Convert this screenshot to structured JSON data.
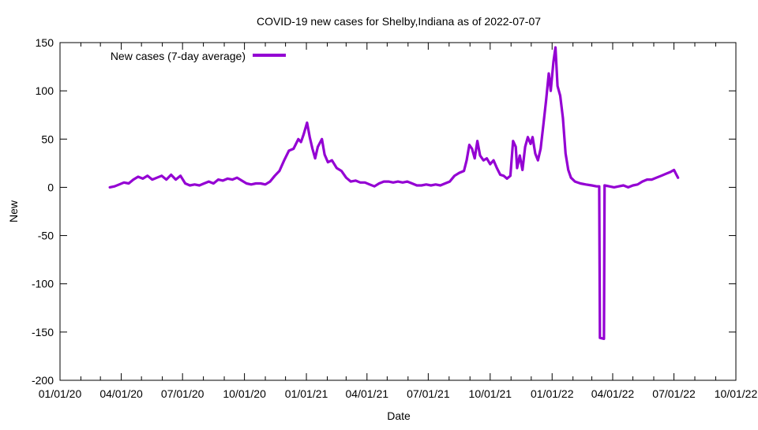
{
  "chart_data": {
    "type": "line",
    "title": "COVID-19 new cases for Shelby,Indiana as of 2022-07-07",
    "xlabel": "Date",
    "ylabel": "New",
    "ylim": [
      -200,
      150
    ],
    "xlim": [
      "2020-01-01",
      "2022-10-01"
    ],
    "yticks": [
      -200,
      -150,
      -100,
      -50,
      0,
      50,
      100,
      150
    ],
    "xticks": [
      {
        "date": "2020-01-01",
        "label": "01/01/20"
      },
      {
        "date": "2020-04-01",
        "label": "04/01/20"
      },
      {
        "date": "2020-07-01",
        "label": "07/01/20"
      },
      {
        "date": "2020-10-01",
        "label": "10/01/20"
      },
      {
        "date": "2021-01-01",
        "label": "01/01/21"
      },
      {
        "date": "2021-04-01",
        "label": "04/01/21"
      },
      {
        "date": "2021-07-01",
        "label": "07/01/21"
      },
      {
        "date": "2021-10-01",
        "label": "10/01/21"
      },
      {
        "date": "2022-01-01",
        "label": "01/01/22"
      },
      {
        "date": "2022-04-01",
        "label": "04/01/22"
      },
      {
        "date": "2022-07-01",
        "label": "07/01/22"
      },
      {
        "date": "2022-10-01",
        "label": "10/01/22"
      }
    ],
    "legend": "top-left",
    "grid": false,
    "series": [
      {
        "name": "New cases (7-day average)",
        "color": "#9400d3",
        "points": [
          [
            "2020-03-15",
            0
          ],
          [
            "2020-03-22",
            1
          ],
          [
            "2020-03-29",
            3
          ],
          [
            "2020-04-05",
            5
          ],
          [
            "2020-04-12",
            4
          ],
          [
            "2020-04-19",
            8
          ],
          [
            "2020-04-26",
            11
          ],
          [
            "2020-05-03",
            9
          ],
          [
            "2020-05-10",
            12
          ],
          [
            "2020-05-17",
            8
          ],
          [
            "2020-05-24",
            10
          ],
          [
            "2020-05-31",
            12
          ],
          [
            "2020-06-07",
            8
          ],
          [
            "2020-06-14",
            13
          ],
          [
            "2020-06-21",
            8
          ],
          [
            "2020-06-28",
            12
          ],
          [
            "2020-07-05",
            4
          ],
          [
            "2020-07-12",
            2
          ],
          [
            "2020-07-19",
            3
          ],
          [
            "2020-07-26",
            2
          ],
          [
            "2020-08-02",
            4
          ],
          [
            "2020-08-09",
            6
          ],
          [
            "2020-08-16",
            4
          ],
          [
            "2020-08-23",
            8
          ],
          [
            "2020-08-30",
            7
          ],
          [
            "2020-09-06",
            9
          ],
          [
            "2020-09-13",
            8
          ],
          [
            "2020-09-20",
            10
          ],
          [
            "2020-09-27",
            7
          ],
          [
            "2020-10-04",
            4
          ],
          [
            "2020-10-11",
            3
          ],
          [
            "2020-10-18",
            4
          ],
          [
            "2020-10-25",
            4
          ],
          [
            "2020-11-01",
            3
          ],
          [
            "2020-11-08",
            6
          ],
          [
            "2020-11-15",
            12
          ],
          [
            "2020-11-22",
            17
          ],
          [
            "2020-11-29",
            28
          ],
          [
            "2020-12-06",
            38
          ],
          [
            "2020-12-13",
            40
          ],
          [
            "2020-12-20",
            50
          ],
          [
            "2020-12-24",
            47
          ],
          [
            "2020-12-28",
            55
          ],
          [
            "2021-01-02",
            67
          ],
          [
            "2021-01-06",
            52
          ],
          [
            "2021-01-10",
            40
          ],
          [
            "2021-01-14",
            30
          ],
          [
            "2021-01-18",
            42
          ],
          [
            "2021-01-24",
            50
          ],
          [
            "2021-01-28",
            34
          ],
          [
            "2021-02-02",
            26
          ],
          [
            "2021-02-08",
            28
          ],
          [
            "2021-02-15",
            20
          ],
          [
            "2021-02-22",
            17
          ],
          [
            "2021-03-01",
            10
          ],
          [
            "2021-03-08",
            6
          ],
          [
            "2021-03-15",
            7
          ],
          [
            "2021-03-22",
            5
          ],
          [
            "2021-03-29",
            5
          ],
          [
            "2021-04-05",
            3
          ],
          [
            "2021-04-12",
            1
          ],
          [
            "2021-04-19",
            4
          ],
          [
            "2021-04-26",
            6
          ],
          [
            "2021-05-03",
            6
          ],
          [
            "2021-05-10",
            5
          ],
          [
            "2021-05-17",
            6
          ],
          [
            "2021-05-24",
            5
          ],
          [
            "2021-05-31",
            6
          ],
          [
            "2021-06-07",
            4
          ],
          [
            "2021-06-14",
            2
          ],
          [
            "2021-06-21",
            2
          ],
          [
            "2021-06-28",
            3
          ],
          [
            "2021-07-05",
            2
          ],
          [
            "2021-07-12",
            3
          ],
          [
            "2021-07-19",
            2
          ],
          [
            "2021-07-26",
            4
          ],
          [
            "2021-08-02",
            6
          ],
          [
            "2021-08-09",
            12
          ],
          [
            "2021-08-16",
            15
          ],
          [
            "2021-08-23",
            17
          ],
          [
            "2021-08-27",
            28
          ],
          [
            "2021-08-31",
            44
          ],
          [
            "2021-09-04",
            40
          ],
          [
            "2021-09-08",
            30
          ],
          [
            "2021-09-12",
            48
          ],
          [
            "2021-09-16",
            33
          ],
          [
            "2021-09-21",
            28
          ],
          [
            "2021-09-26",
            30
          ],
          [
            "2021-10-01",
            24
          ],
          [
            "2021-10-06",
            28
          ],
          [
            "2021-10-11",
            20
          ],
          [
            "2021-10-16",
            13
          ],
          [
            "2021-10-21",
            12
          ],
          [
            "2021-10-26",
            9
          ],
          [
            "2021-10-31",
            12
          ],
          [
            "2021-11-04",
            48
          ],
          [
            "2021-11-08",
            42
          ],
          [
            "2021-11-10",
            20
          ],
          [
            "2021-11-14",
            33
          ],
          [
            "2021-11-18",
            18
          ],
          [
            "2021-11-22",
            42
          ],
          [
            "2021-11-26",
            52
          ],
          [
            "2021-11-30",
            45
          ],
          [
            "2021-12-03",
            52
          ],
          [
            "2021-12-07",
            35
          ],
          [
            "2021-12-11",
            28
          ],
          [
            "2021-12-15",
            40
          ],
          [
            "2021-12-19",
            65
          ],
          [
            "2021-12-23",
            90
          ],
          [
            "2021-12-27",
            118
          ],
          [
            "2021-12-30",
            100
          ],
          [
            "2022-01-03",
            130
          ],
          [
            "2022-01-06",
            145
          ],
          [
            "2022-01-09",
            105
          ],
          [
            "2022-01-13",
            95
          ],
          [
            "2022-01-17",
            72
          ],
          [
            "2022-01-21",
            35
          ],
          [
            "2022-01-25",
            18
          ],
          [
            "2022-01-29",
            10
          ],
          [
            "2022-02-04",
            6
          ],
          [
            "2022-02-12",
            4
          ],
          [
            "2022-02-20",
            3
          ],
          [
            "2022-03-01",
            2
          ],
          [
            "2022-03-08",
            1
          ],
          [
            "2022-03-12",
            1
          ],
          [
            "2022-03-13",
            -156
          ],
          [
            "2022-03-19",
            -157
          ],
          [
            "2022-03-20",
            2
          ],
          [
            "2022-03-27",
            1
          ],
          [
            "2022-04-03",
            0
          ],
          [
            "2022-04-10",
            1
          ],
          [
            "2022-04-17",
            2
          ],
          [
            "2022-04-24",
            0
          ],
          [
            "2022-05-01",
            2
          ],
          [
            "2022-05-08",
            3
          ],
          [
            "2022-05-15",
            6
          ],
          [
            "2022-05-22",
            8
          ],
          [
            "2022-05-29",
            8
          ],
          [
            "2022-06-05",
            10
          ],
          [
            "2022-06-12",
            12
          ],
          [
            "2022-06-19",
            14
          ],
          [
            "2022-06-26",
            16
          ],
          [
            "2022-07-01",
            18
          ],
          [
            "2022-07-04",
            14
          ],
          [
            "2022-07-07",
            10
          ]
        ]
      }
    ]
  }
}
